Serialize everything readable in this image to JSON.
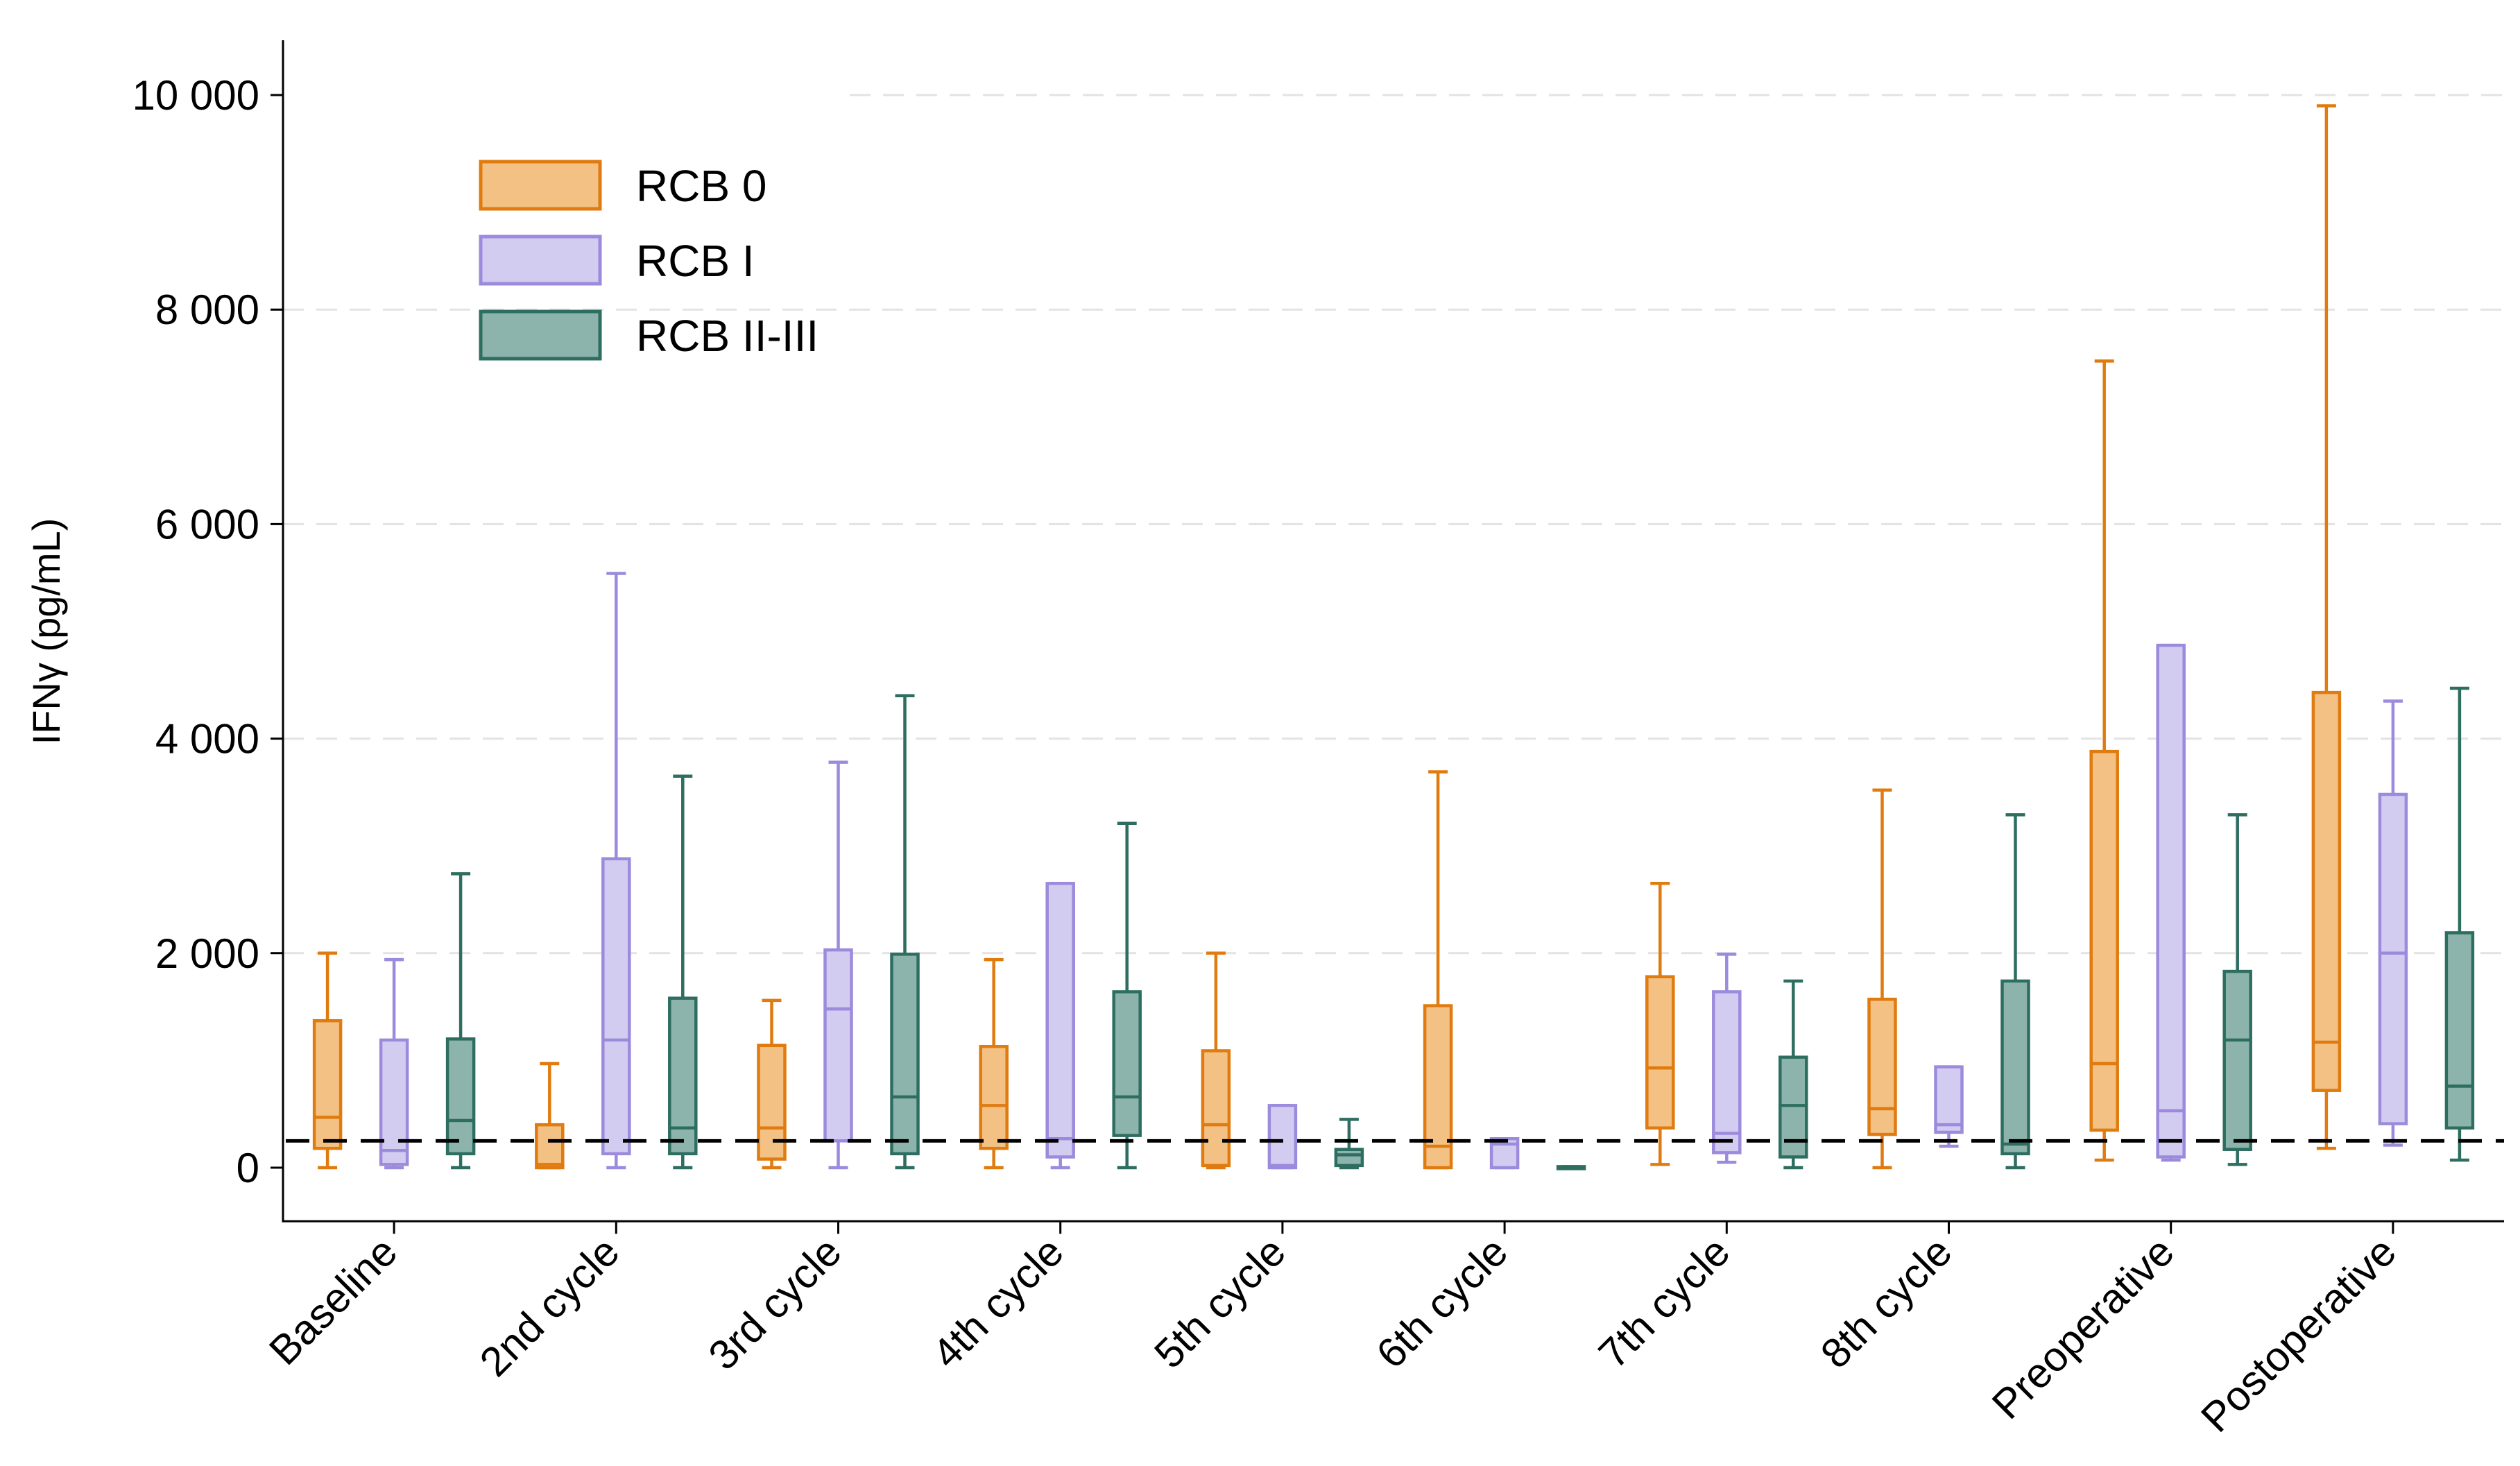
{
  "chart_data": {
    "type": "box",
    "title": "",
    "xlabel": "",
    "ylabel": "IFNγ (pg/mL)",
    "ylim": [
      -500,
      10500
    ],
    "yticks": [
      0,
      2000,
      4000,
      6000,
      8000,
      10000
    ],
    "ytick_labels": [
      "0",
      "2 000",
      "4 000",
      "6 000",
      "8 000",
      "10 000"
    ],
    "grid": "horizontal dashed",
    "reference_line": 250,
    "legend_position": "top-left",
    "categories": [
      "Baseline",
      "2nd cycle",
      "3rd cycle",
      "4th cycle",
      "5th cycle",
      "6th cycle",
      "7th cycle",
      "8th cycle",
      "Preoperative",
      "Postoperative"
    ],
    "series": [
      {
        "name": "RCB 0",
        "color": "#E07B10",
        "fill": "#F3C183",
        "boxes": [
          {
            "min": 0,
            "q1": 180,
            "median": 470,
            "q3": 1370,
            "max": 2000
          },
          {
            "min": 0,
            "q1": 0,
            "median": 30,
            "q3": 400,
            "max": 970
          },
          {
            "min": 0,
            "q1": 80,
            "median": 370,
            "q3": 1140,
            "max": 1560
          },
          {
            "min": 0,
            "q1": 180,
            "median": 580,
            "q3": 1130,
            "max": 1940
          },
          {
            "min": 0,
            "q1": 20,
            "median": 400,
            "q3": 1090,
            "max": 2000
          },
          {
            "min": 0,
            "q1": 0,
            "median": 200,
            "q3": 1510,
            "max": 3690
          },
          {
            "min": 30,
            "q1": 370,
            "median": 930,
            "q3": 1780,
            "max": 2650
          },
          {
            "min": 0,
            "q1": 310,
            "median": 550,
            "q3": 1570,
            "max": 3520
          },
          {
            "min": 70,
            "q1": 350,
            "median": 970,
            "q3": 3880,
            "max": 7520
          },
          {
            "min": 180,
            "q1": 720,
            "median": 1170,
            "q3": 4430,
            "max": 9900
          }
        ]
      },
      {
        "name": "RCB I",
        "color": "#9C8BDC",
        "fill": "#D3CCF1",
        "boxes": [
          {
            "min": 0,
            "q1": 30,
            "median": 160,
            "q3": 1190,
            "max": 1940
          },
          {
            "min": 0,
            "q1": 130,
            "median": 1190,
            "q3": 2880,
            "max": 5540
          },
          {
            "min": 0,
            "q1": 250,
            "median": 1480,
            "q3": 2030,
            "max": 3780
          },
          {
            "min": 0,
            "q1": 100,
            "median": 270,
            "q3": 2650,
            "max": 2650
          },
          {
            "min": 0,
            "q1": 0,
            "median": 20,
            "q3": 580,
            "max": 580
          },
          {
            "min": 0,
            "q1": 0,
            "median": 220,
            "q3": 270,
            "max": 270
          },
          {
            "min": 50,
            "q1": 140,
            "median": 320,
            "q3": 1640,
            "max": 1990
          },
          {
            "min": 200,
            "q1": 330,
            "median": 400,
            "q3": 940,
            "max": 940
          },
          {
            "min": 70,
            "q1": 100,
            "median": 530,
            "q3": 4870,
            "max": 4870
          },
          {
            "min": 210,
            "q1": 410,
            "median": 2000,
            "q3": 3480,
            "max": 4350
          }
        ]
      },
      {
        "name": "RCB II-III",
        "color": "#2E6E61",
        "fill": "#8DB4AC",
        "boxes": [
          {
            "min": 0,
            "q1": 130,
            "median": 440,
            "q3": 1200,
            "max": 2740
          },
          {
            "min": 0,
            "q1": 130,
            "median": 370,
            "q3": 1580,
            "max": 3650
          },
          {
            "min": 0,
            "q1": 130,
            "median": 660,
            "q3": 1990,
            "max": 4400
          },
          {
            "min": 0,
            "q1": 300,
            "median": 660,
            "q3": 1640,
            "max": 3210
          },
          {
            "min": 0,
            "q1": 20,
            "median": 120,
            "q3": 170,
            "max": 450
          },
          {
            "min": 0,
            "q1": 0,
            "median": 0,
            "q3": 10,
            "max": 10
          },
          {
            "min": 0,
            "q1": 100,
            "median": 580,
            "q3": 1030,
            "max": 1740
          },
          {
            "min": 0,
            "q1": 130,
            "median": 220,
            "q3": 1740,
            "max": 3290
          },
          {
            "min": 30,
            "q1": 170,
            "median": 1190,
            "q3": 1830,
            "max": 3290
          },
          {
            "min": 70,
            "q1": 370,
            "median": 760,
            "q3": 2190,
            "max": 4470
          }
        ]
      }
    ]
  }
}
